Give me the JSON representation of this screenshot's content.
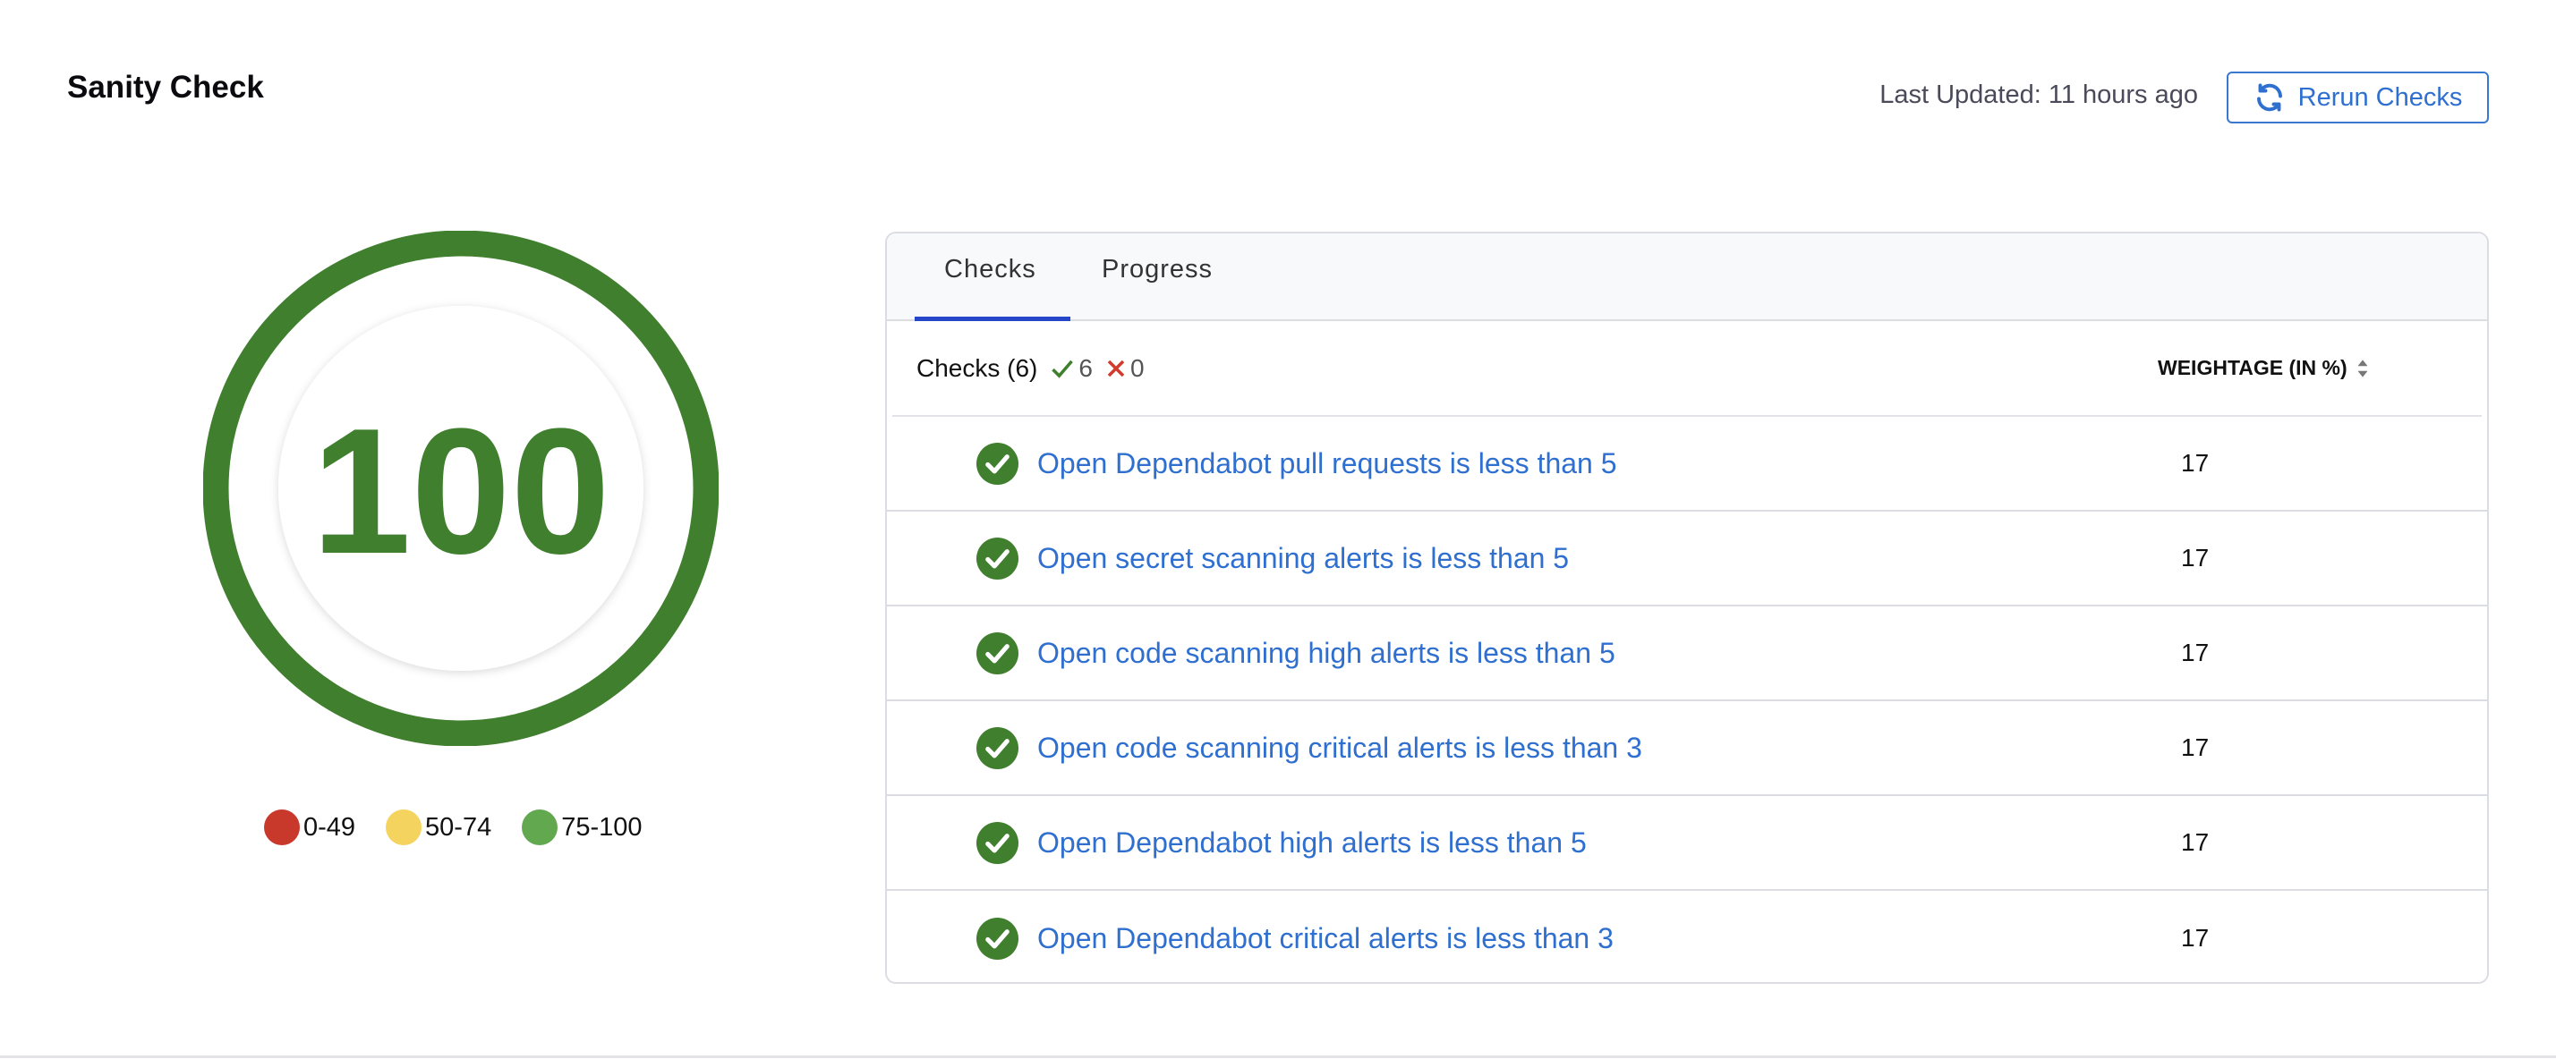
{
  "header": {
    "title": "Sanity Check",
    "last_updated": "Last Updated: 11 hours ago",
    "rerun_label": "Rerun Checks"
  },
  "score": {
    "value": "100",
    "color": "#3f7f2e"
  },
  "legend": [
    {
      "label": "0-49",
      "color": "#c8392b"
    },
    {
      "label": "50-74",
      "color": "#f4d35e"
    },
    {
      "label": "75-100",
      "color": "#62a84f"
    }
  ],
  "tabs": [
    {
      "label": "Checks",
      "active": true
    },
    {
      "label": "Progress",
      "active": false
    }
  ],
  "checks_header": {
    "label": "Checks (6)",
    "passed": "6",
    "failed": "0",
    "weightage": "WEIGHTAGE (IN %)"
  },
  "checks": [
    {
      "name": "Open Dependabot pull requests is less than 5",
      "weight": "17",
      "status": "pass"
    },
    {
      "name": "Open secret scanning alerts is less than 5",
      "weight": "17",
      "status": "pass"
    },
    {
      "name": "Open code scanning high alerts is less than 5",
      "weight": "17",
      "status": "pass"
    },
    {
      "name": "Open code scanning critical alerts is less than 3",
      "weight": "17",
      "status": "pass"
    },
    {
      "name": "Open Dependabot high alerts is less than 5",
      "weight": "17",
      "status": "pass"
    },
    {
      "name": "Open Dependabot critical alerts is less than 3",
      "weight": "17",
      "status": "pass"
    }
  ]
}
